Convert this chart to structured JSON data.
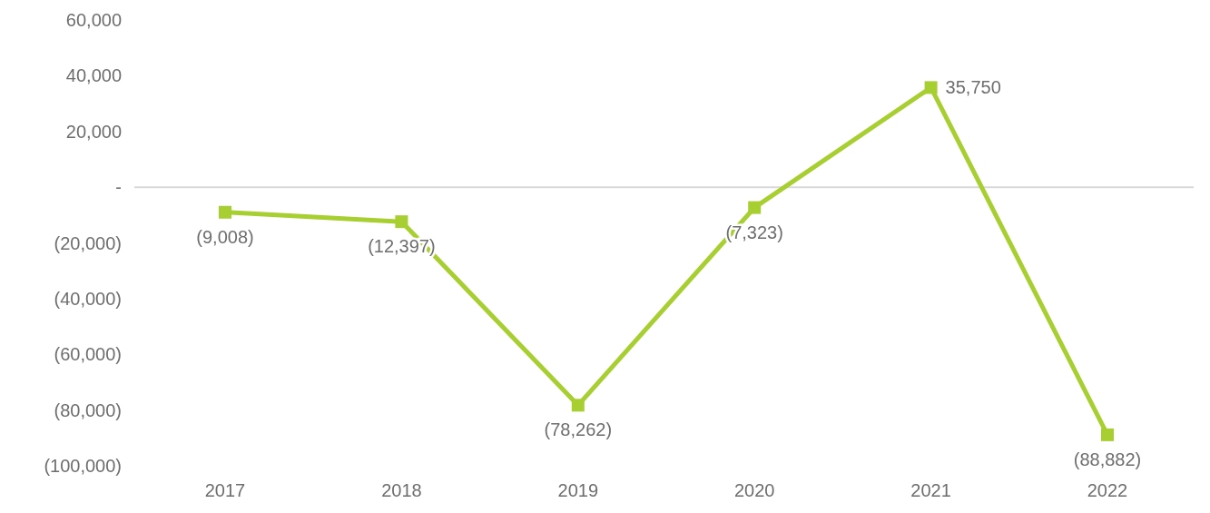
{
  "chart_data": {
    "type": "line",
    "categories": [
      "2017",
      "2018",
      "2019",
      "2020",
      "2021",
      "2022"
    ],
    "series": [
      {
        "color": "#a8cf32",
        "values": [
          -9008,
          -12397,
          -78262,
          -7323,
          35750,
          -88882
        ],
        "value_labels": [
          "(9,008)",
          "(12,397)",
          "(78,262)",
          "(7,323)",
          "35,750",
          "(88,882)"
        ]
      }
    ],
    "ylim": [
      -100000,
      60000
    ],
    "yticks": [
      {
        "value": -100000,
        "label": "(100,000)"
      },
      {
        "value": -80000,
        "label": "(80,000)"
      },
      {
        "value": -60000,
        "label": "(60,000)"
      },
      {
        "value": -40000,
        "label": "(40,000)"
      },
      {
        "value": -20000,
        "label": "(20,000)"
      },
      {
        "value": 0,
        "label": "-"
      },
      {
        "value": 20000,
        "label": "20,000"
      },
      {
        "value": 40000,
        "label": "40,000"
      },
      {
        "value": 60000,
        "label": "60,000"
      }
    ],
    "ref_lines": [
      {
        "axis": "y",
        "value": 0,
        "color": "#d9d9d9"
      }
    ],
    "marker": "square",
    "line_style": "solid"
  }
}
